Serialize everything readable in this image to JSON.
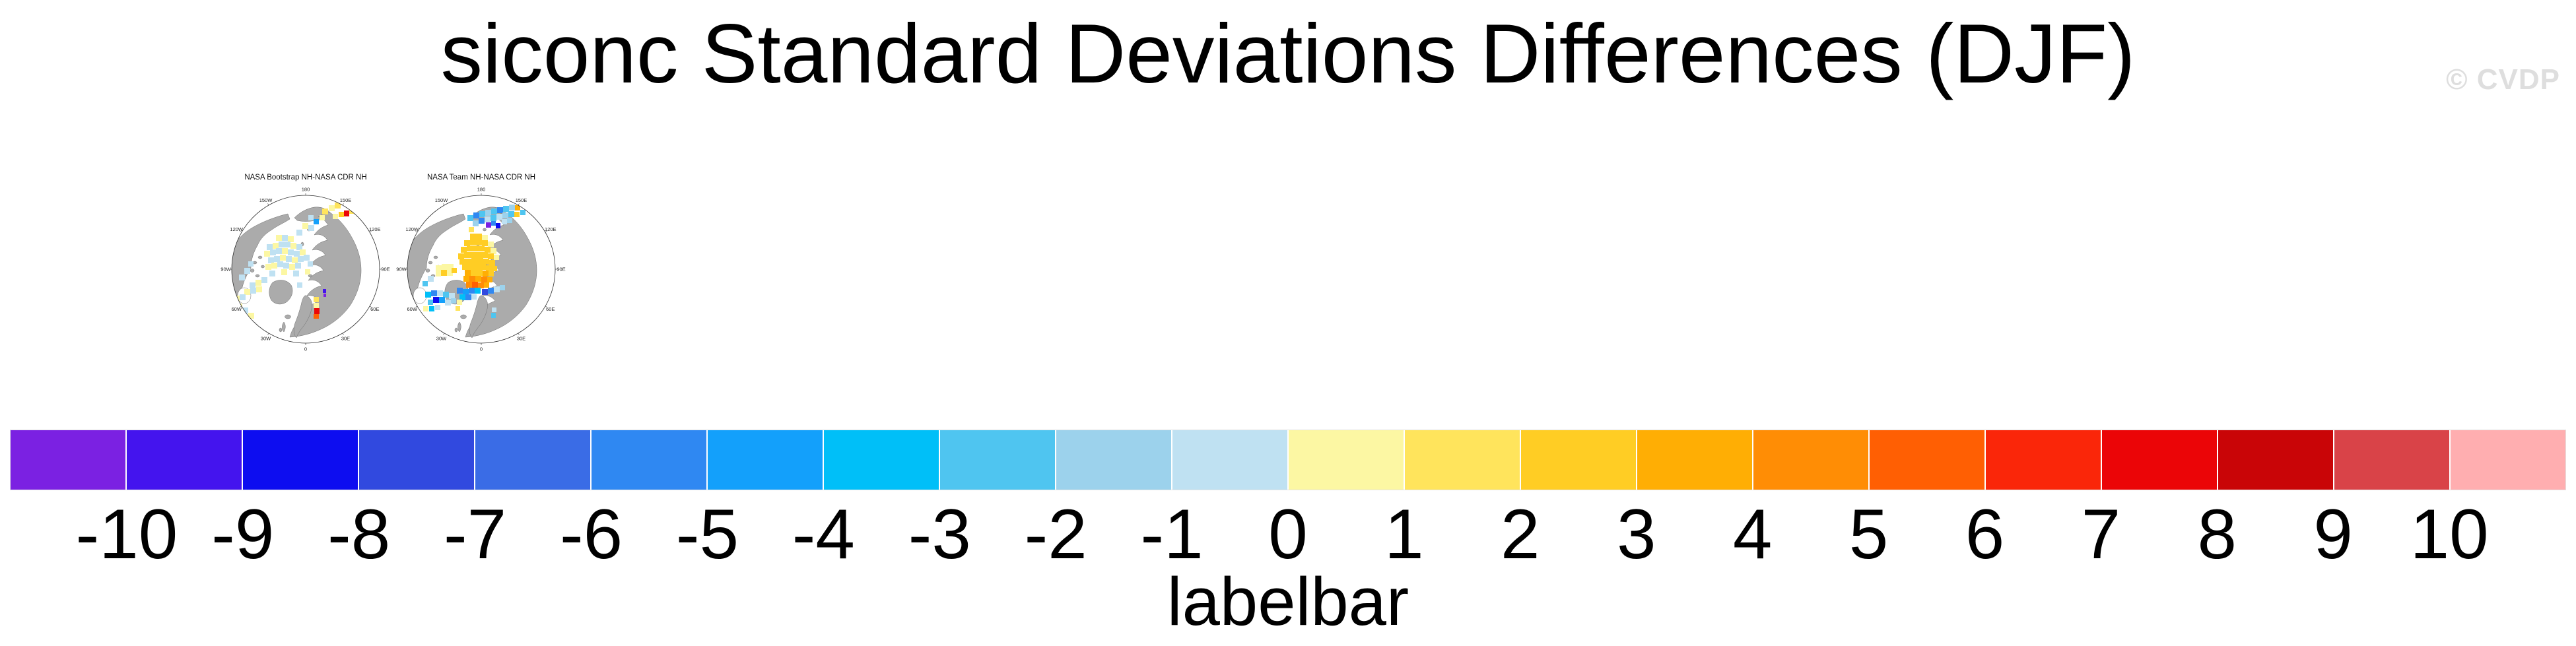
{
  "header": {
    "title": "siconc Standard Deviations Differences (DJF)",
    "watermark": "© CVDP"
  },
  "palette": {
    "pu": "#7B21E2",
    "bv": "#4414EE",
    "nb": "#0D0DF0",
    "rb": "#3149DF",
    "mb": "#3A6CE6",
    "db": "#2F88F2",
    "az": "#13A0FB",
    "cy": "#00BFF8",
    "sk": "#4FC5F0",
    "ls": "#9CD2EC",
    "pb": "#BFE1F2",
    "py": "#FCF7A3",
    "ye": "#FFE45C",
    "go": "#FFCD24",
    "oy": "#FFAE04",
    "or": "#FF8D05",
    "do": "#FF5F03",
    "ro": "#FA2609",
    "re": "#EB0507",
    "dr": "#C90507",
    "br": "#D94348",
    "pk": "#FFAEB0"
  },
  "map_common": {
    "lon_labels": [
      {
        "t": "180",
        "a": 0
      },
      {
        "t": "150E",
        "a": 30
      },
      {
        "t": "120E",
        "a": 60
      },
      {
        "t": "90E",
        "a": 90
      },
      {
        "t": "60E",
        "a": 120
      },
      {
        "t": "30E",
        "a": 150
      },
      {
        "t": "0",
        "a": 180
      },
      {
        "t": "30W",
        "a": 210
      },
      {
        "t": "60W",
        "a": 240
      },
      {
        "t": "90W",
        "a": 270
      },
      {
        "t": "120W",
        "a": 300
      },
      {
        "t": "150W",
        "a": 330
      }
    ]
  },
  "panels": [
    {
      "title": "NASA Bootstrap NH-NASA CDR NH",
      "patches": [
        [
          170,
          38,
          9,
          9,
          "ye"
        ],
        [
          180,
          33,
          9,
          9,
          "py"
        ],
        [
          189,
          29,
          9,
          9,
          "ye"
        ],
        [
          198,
          25,
          8,
          8,
          "oy"
        ],
        [
          203,
          41,
          8,
          9,
          "re"
        ],
        [
          195,
          43,
          8,
          8,
          "go"
        ],
        [
          211,
          38,
          8,
          8,
          "ye"
        ],
        [
          186,
          46,
          8,
          8,
          "py"
        ],
        [
          157,
          54,
          8,
          8,
          "az"
        ],
        [
          149,
          48,
          8,
          8,
          "pb"
        ],
        [
          166,
          48,
          8,
          8,
          "py"
        ],
        [
          140,
          60,
          9,
          9,
          "py"
        ],
        [
          131,
          70,
          9,
          9,
          "pb"
        ],
        [
          149,
          63,
          9,
          9,
          "pb"
        ],
        [
          100,
          78,
          9,
          9,
          "py"
        ],
        [
          109,
          78,
          9,
          9,
          "pb"
        ],
        [
          118,
          80,
          9,
          9,
          "py"
        ],
        [
          86,
          92,
          9,
          9,
          "pb"
        ],
        [
          95,
          90,
          9,
          9,
          "py"
        ],
        [
          104,
          88,
          9,
          9,
          "pb"
        ],
        [
          113,
          88,
          9,
          9,
          "pb"
        ],
        [
          122,
          90,
          9,
          9,
          "py"
        ],
        [
          131,
          92,
          9,
          9,
          "pb"
        ],
        [
          82,
          102,
          9,
          9,
          "py"
        ],
        [
          91,
          100,
          9,
          9,
          "pb"
        ],
        [
          100,
          98,
          9,
          9,
          "pb"
        ],
        [
          109,
          98,
          9,
          9,
          "py"
        ],
        [
          118,
          100,
          9,
          9,
          "pb"
        ],
        [
          127,
          102,
          9,
          9,
          "pb"
        ],
        [
          136,
          100,
          9,
          9,
          "py"
        ],
        [
          88,
          112,
          9,
          9,
          "pb"
        ],
        [
          97,
          110,
          9,
          9,
          "pb"
        ],
        [
          106,
          108,
          9,
          9,
          "py"
        ],
        [
          115,
          110,
          9,
          9,
          "pb"
        ],
        [
          124,
          112,
          9,
          9,
          "py"
        ],
        [
          133,
          110,
          9,
          9,
          "pb"
        ],
        [
          142,
          108,
          9,
          9,
          "pb"
        ],
        [
          84,
          122,
          9,
          9,
          "py"
        ],
        [
          93,
          120,
          9,
          9,
          "py"
        ],
        [
          102,
          118,
          9,
          9,
          "pb"
        ],
        [
          111,
          120,
          9,
          9,
          "pb"
        ],
        [
          120,
          122,
          9,
          9,
          "py"
        ],
        [
          129,
          120,
          9,
          9,
          "pb"
        ],
        [
          148,
          118,
          8,
          8,
          "pb"
        ],
        [
          90,
          132,
          9,
          9,
          "pb"
        ],
        [
          108,
          130,
          9,
          9,
          "py"
        ],
        [
          126,
          132,
          9,
          9,
          "pb"
        ],
        [
          144,
          130,
          8,
          8,
          "py"
        ],
        [
          60,
          150,
          9,
          9,
          "pb"
        ],
        [
          69,
          146,
          9,
          9,
          "py"
        ],
        [
          78,
          142,
          9,
          9,
          "pb"
        ],
        [
          52,
          160,
          9,
          9,
          "py"
        ],
        [
          61,
          158,
          9,
          9,
          "pb"
        ],
        [
          70,
          156,
          9,
          9,
          "py"
        ],
        [
          36,
          170,
          9,
          9,
          "py"
        ],
        [
          45,
          168,
          9,
          9,
          "pb"
        ],
        [
          40,
          182,
          9,
          9,
          "py"
        ],
        [
          30,
          192,
          9,
          9,
          "py"
        ],
        [
          49,
          188,
          9,
          9,
          "pb"
        ],
        [
          58,
          196,
          9,
          9,
          "py"
        ],
        [
          52,
          128,
          9,
          9,
          "pb"
        ],
        [
          44,
          138,
          9,
          9,
          "pb"
        ],
        [
          58,
          118,
          8,
          8,
          "pb"
        ],
        [
          171,
          160,
          5,
          6,
          "bv"
        ],
        [
          172,
          167,
          4,
          5,
          "pu"
        ],
        [
          157,
          172,
          8,
          8,
          "ye"
        ],
        [
          157,
          181,
          8,
          8,
          "py"
        ],
        [
          158,
          189,
          8,
          9,
          "re"
        ],
        [
          157,
          198,
          8,
          7,
          "do"
        ],
        [
          132,
          150,
          8,
          8,
          "pb"
        ]
      ]
    },
    {
      "title": "NASA Team NH-NASA CDR NH",
      "patches": [
        [
          124,
          48,
          9,
          9,
          "sk"
        ],
        [
          133,
          44,
          9,
          9,
          "db"
        ],
        [
          142,
          42,
          9,
          9,
          "sk"
        ],
        [
          151,
          40,
          9,
          9,
          "ls"
        ],
        [
          160,
          38,
          9,
          9,
          "sk"
        ],
        [
          169,
          36,
          9,
          9,
          "db"
        ],
        [
          178,
          34,
          9,
          9,
          "sk"
        ],
        [
          187,
          32,
          9,
          9,
          "ls"
        ],
        [
          196,
          33,
          8,
          8,
          "oy"
        ],
        [
          150,
          50,
          9,
          9,
          "pb"
        ],
        [
          159,
          48,
          9,
          9,
          "sk"
        ],
        [
          168,
          46,
          9,
          9,
          "pb"
        ],
        [
          177,
          44,
          9,
          9,
          "ls"
        ],
        [
          186,
          42,
          9,
          9,
          "sk"
        ],
        [
          195,
          43,
          8,
          8,
          "go"
        ],
        [
          141,
          52,
          9,
          9,
          "db"
        ],
        [
          132,
          56,
          9,
          9,
          "ls"
        ],
        [
          167,
          60,
          7,
          8,
          "nb"
        ],
        [
          152,
          59,
          8,
          8,
          "pu"
        ],
        [
          160,
          57,
          7,
          7,
          "db"
        ],
        [
          176,
          54,
          8,
          8,
          "pb"
        ],
        [
          184,
          52,
          8,
          8,
          "ls"
        ],
        [
          204,
          40,
          8,
          8,
          "sk"
        ],
        [
          126,
          66,
          8,
          8,
          "ye"
        ],
        [
          128,
          76,
          9,
          9,
          "go"
        ],
        [
          137,
          76,
          9,
          9,
          "go"
        ],
        [
          146,
          78,
          9,
          9,
          "py"
        ],
        [
          119,
          86,
          9,
          9,
          "go"
        ],
        [
          128,
          84,
          9,
          9,
          "go"
        ],
        [
          137,
          84,
          9,
          9,
          "go"
        ],
        [
          146,
          86,
          9,
          9,
          "go"
        ],
        [
          155,
          88,
          9,
          9,
          "py"
        ],
        [
          114,
          96,
          9,
          9,
          "go"
        ],
        [
          123,
          94,
          9,
          9,
          "go"
        ],
        [
          132,
          94,
          9,
          9,
          "go"
        ],
        [
          141,
          94,
          9,
          9,
          "go"
        ],
        [
          150,
          96,
          9,
          9,
          "go"
        ],
        [
          159,
          98,
          9,
          9,
          "py"
        ],
        [
          110,
          106,
          9,
          9,
          "go"
        ],
        [
          119,
          104,
          9,
          9,
          "go"
        ],
        [
          128,
          104,
          9,
          9,
          "go"
        ],
        [
          137,
          104,
          9,
          9,
          "go"
        ],
        [
          146,
          104,
          9,
          9,
          "go"
        ],
        [
          155,
          106,
          9,
          9,
          "go"
        ],
        [
          164,
          108,
          8,
          8,
          "py"
        ],
        [
          112,
          114,
          9,
          9,
          "go"
        ],
        [
          121,
          114,
          9,
          9,
          "go"
        ],
        [
          130,
          113,
          9,
          9,
          "go"
        ],
        [
          139,
          113,
          9,
          9,
          "go"
        ],
        [
          148,
          114,
          9,
          9,
          "go"
        ],
        [
          157,
          116,
          9,
          9,
          "go"
        ],
        [
          116,
          122,
          9,
          9,
          "go"
        ],
        [
          125,
          122,
          9,
          9,
          "go"
        ],
        [
          134,
          122,
          9,
          9,
          "go"
        ],
        [
          143,
          122,
          9,
          9,
          "go"
        ],
        [
          152,
          124,
          9,
          9,
          "go"
        ],
        [
          161,
          125,
          8,
          8,
          "go"
        ],
        [
          120,
          131,
          9,
          9,
          "oy"
        ],
        [
          129,
          131,
          9,
          9,
          "go"
        ],
        [
          138,
          131,
          9,
          9,
          "go"
        ],
        [
          147,
          132,
          9,
          9,
          "oy"
        ],
        [
          156,
          133,
          8,
          8,
          "go"
        ],
        [
          118,
          140,
          9,
          9,
          "oy"
        ],
        [
          127,
          140,
          9,
          9,
          "or"
        ],
        [
          136,
          140,
          9,
          9,
          "oy"
        ],
        [
          145,
          141,
          9,
          9,
          "or"
        ],
        [
          154,
          142,
          8,
          8,
          "oy"
        ],
        [
          122,
          149,
          9,
          9,
          "or"
        ],
        [
          131,
          149,
          9,
          9,
          "do"
        ],
        [
          140,
          150,
          9,
          9,
          "or"
        ],
        [
          149,
          150,
          8,
          8,
          "oy"
        ],
        [
          108,
          158,
          9,
          9,
          "db"
        ],
        [
          117,
          160,
          9,
          9,
          "az"
        ],
        [
          126,
          158,
          9,
          9,
          "db"
        ],
        [
          135,
          158,
          9,
          9,
          "cy"
        ],
        [
          146,
          160,
          9,
          9,
          "rb"
        ],
        [
          155,
          158,
          9,
          9,
          "db"
        ],
        [
          164,
          156,
          9,
          9,
          "pb"
        ],
        [
          173,
          154,
          8,
          8,
          "ls"
        ],
        [
          112,
          168,
          9,
          9,
          "cy"
        ],
        [
          121,
          168,
          9,
          9,
          "db"
        ],
        [
          130,
          168,
          8,
          8,
          "pb"
        ],
        [
          76,
          124,
          9,
          9,
          "py"
        ],
        [
          85,
          122,
          9,
          9,
          "py"
        ],
        [
          94,
          122,
          9,
          9,
          "py"
        ],
        [
          84,
          131,
          9,
          9,
          "go"
        ],
        [
          93,
          131,
          9,
          9,
          "py"
        ],
        [
          76,
          133,
          8,
          8,
          "py"
        ],
        [
          100,
          128,
          8,
          8,
          "go"
        ],
        [
          64,
          140,
          9,
          9,
          "pb"
        ],
        [
          56,
          148,
          8,
          8,
          "sk"
        ],
        [
          60,
          164,
          9,
          9,
          "cy"
        ],
        [
          69,
          162,
          9,
          9,
          "db"
        ],
        [
          78,
          162,
          9,
          9,
          "pb"
        ],
        [
          87,
          164,
          9,
          9,
          "sk"
        ],
        [
          96,
          166,
          9,
          9,
          "pb"
        ],
        [
          72,
          172,
          9,
          9,
          "nb"
        ],
        [
          81,
          172,
          9,
          9,
          "az"
        ],
        [
          64,
          176,
          8,
          8,
          "sk"
        ],
        [
          90,
          176,
          9,
          9,
          "pb"
        ],
        [
          99,
          174,
          8,
          8,
          "ls"
        ],
        [
          108,
          176,
          8,
          8,
          "py"
        ],
        [
          57,
          186,
          8,
          8,
          "py"
        ],
        [
          66,
          186,
          8,
          8,
          "cy"
        ],
        [
          75,
          184,
          8,
          8,
          "pb"
        ],
        [
          106,
          186,
          7,
          7,
          "ye"
        ],
        [
          160,
          196,
          7,
          8,
          "sk"
        ],
        [
          161,
          188,
          7,
          7,
          "pb"
        ]
      ]
    }
  ],
  "labelbar": {
    "caption": "labelbar",
    "tick_labels": [
      "-10",
      "-9",
      "-8",
      "-7",
      "-6",
      "-5",
      "-4",
      "-3",
      "-2",
      "-1",
      "0",
      "1",
      "2",
      "3",
      "4",
      "5",
      "6",
      "7",
      "8",
      "9",
      "10"
    ],
    "colors": [
      "#7B21E2",
      "#4414EE",
      "#0D0DF0",
      "#3149DF",
      "#3A6CE6",
      "#2F88F2",
      "#13A0FB",
      "#00BFF8",
      "#4FC5F0",
      "#9CD2EC",
      "#BFE1F2",
      "#FCF7A3",
      "#FFE45C",
      "#FFCD24",
      "#FFAE04",
      "#FF8D05",
      "#FF5F03",
      "#FA2609",
      "#EB0507",
      "#C90507",
      "#D94348",
      "#FFAEB0"
    ]
  },
  "chart_data": {
    "type": "heatmap",
    "title": "siconc Standard Deviations Differences (DJF)",
    "variable": "siconc",
    "season": "DJF",
    "projection": "north polar stereographic",
    "panels": [
      "NASA Bootstrap NH-NASA CDR NH",
      "NASA Team NH-NASA CDR NH"
    ],
    "longitude_labels": [
      "180",
      "150W",
      "150E",
      "120W",
      "120E",
      "90W",
      "90E",
      "60W",
      "60E",
      "30W",
      "30E",
      "0"
    ],
    "colorbar_label": "labelbar",
    "colorbar_ticks": [
      -10,
      -9,
      -8,
      -7,
      -6,
      -5,
      -4,
      -3,
      -2,
      -1,
      0,
      1,
      2,
      3,
      4,
      5,
      6,
      7,
      8,
      9,
      10
    ],
    "colorbar_n_boxes": 22,
    "colorbar_colors": [
      "#7B21E2",
      "#4414EE",
      "#0D0DF0",
      "#3149DF",
      "#3A6CE6",
      "#2F88F2",
      "#13A0FB",
      "#00BFF8",
      "#4FC5F0",
      "#9CD2EC",
      "#BFE1F2",
      "#FCF7A3",
      "#FFE45C",
      "#FFCD24",
      "#FFAE04",
      "#FF8D05",
      "#FF5F03",
      "#FA2609",
      "#EB0507",
      "#C90507",
      "#D94348",
      "#FFAEB0"
    ],
    "legend_position": "bottom",
    "grid": false,
    "watermark": "© CVDP"
  }
}
